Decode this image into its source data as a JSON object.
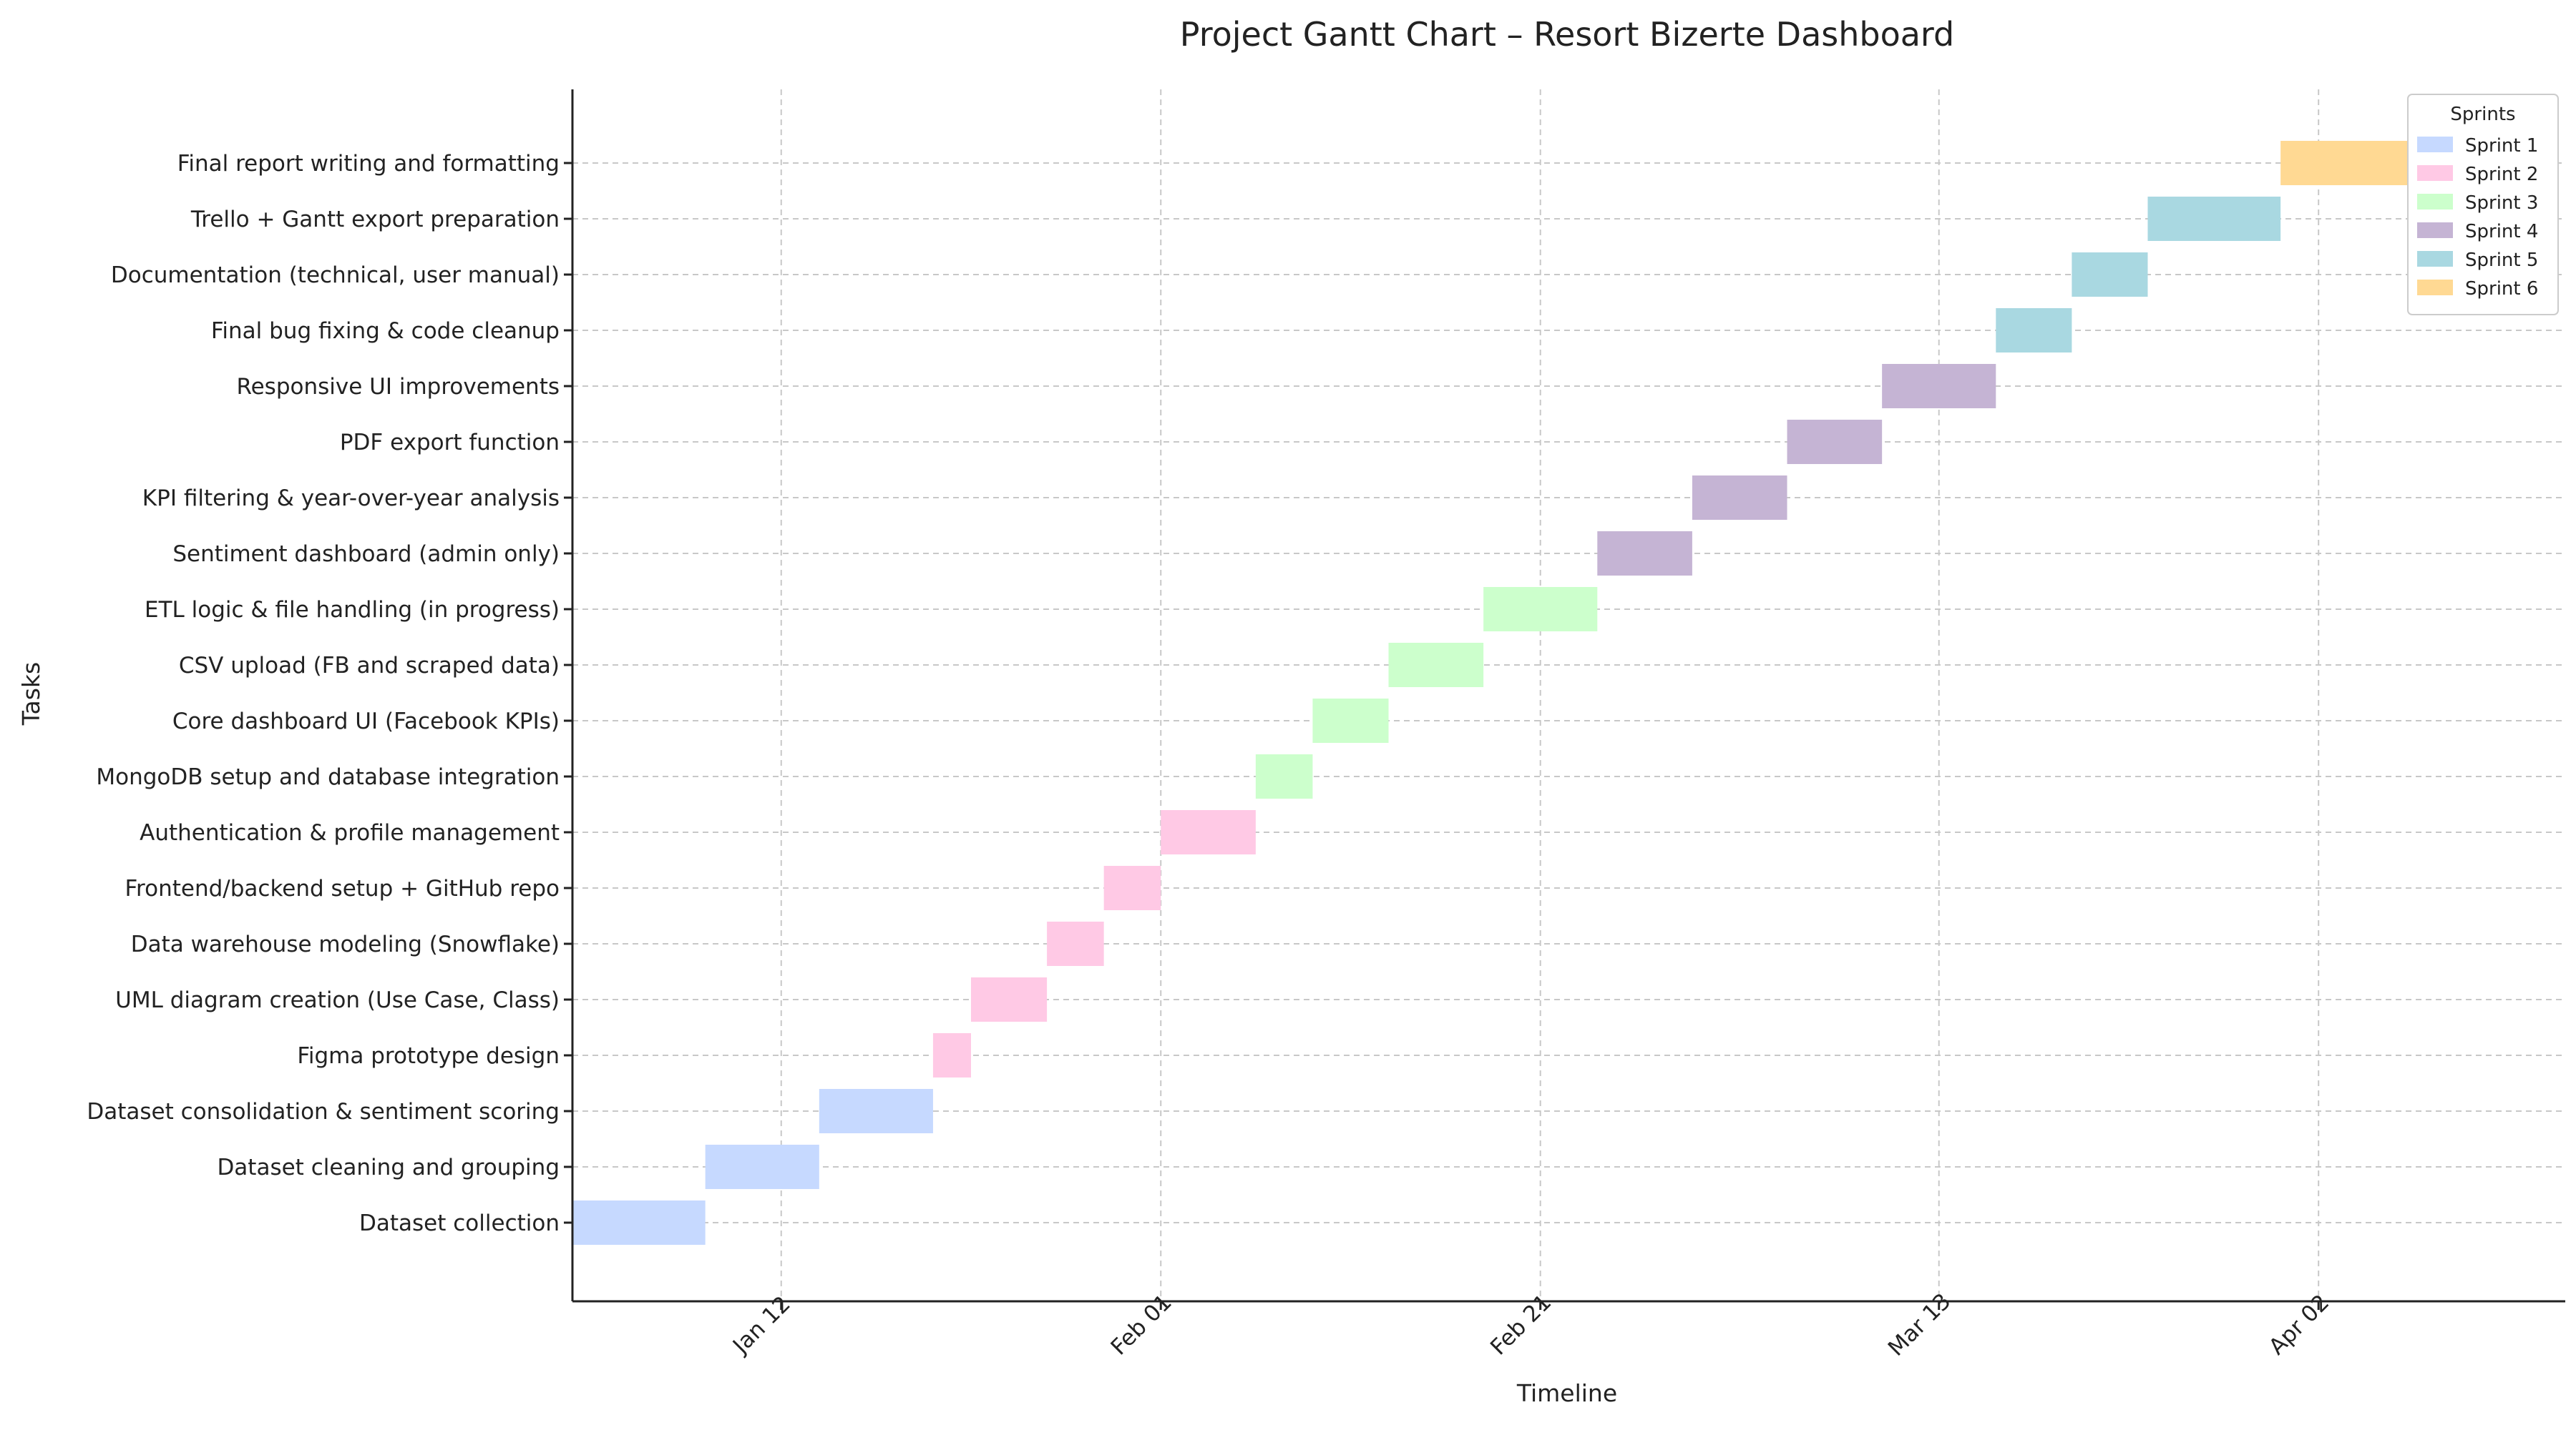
{
  "chart_data": {
    "type": "gantt",
    "title": "Project Gantt Chart – Resort Bizerte Dashboard",
    "xlabel": "Timeline",
    "ylabel": "Tasks",
    "xlim": [
      "2024-01-01",
      "2024-04-15"
    ],
    "x_ticks": [
      {
        "date": "2024-01-12",
        "label": "Jan 12"
      },
      {
        "date": "2024-02-01",
        "label": "Feb 01"
      },
      {
        "date": "2024-02-21",
        "label": "Feb 21"
      },
      {
        "date": "2024-03-13",
        "label": "Mar 13"
      },
      {
        "date": "2024-04-02",
        "label": "Apr 02"
      }
    ],
    "grid": true,
    "legend": {
      "title": "Sprints",
      "position": "top-right"
    },
    "series": [
      {
        "name": "Sprint 1",
        "color": "#c6d9ff"
      },
      {
        "name": "Sprint 2",
        "color": "#ffc9e5"
      },
      {
        "name": "Sprint 3",
        "color": "#ccffcc"
      },
      {
        "name": "Sprint 4",
        "color": "#c5b4d4"
      },
      {
        "name": "Sprint 5",
        "color": "#a9d8e1"
      },
      {
        "name": "Sprint 6",
        "color": "#ffd993"
      }
    ],
    "tasks": [
      {
        "task": "Dataset collection",
        "start": "2024-01-01",
        "end": "2024-01-07",
        "sprint": "Sprint 1"
      },
      {
        "task": "Dataset cleaning and grouping",
        "start": "2024-01-08",
        "end": "2024-01-13",
        "sprint": "Sprint 1"
      },
      {
        "task": "Dataset consolidation & sentiment scoring",
        "start": "2024-01-14",
        "end": "2024-01-19",
        "sprint": "Sprint 1"
      },
      {
        "task": "Figma prototype design",
        "start": "2024-01-20",
        "end": "2024-01-21",
        "sprint": "Sprint 2"
      },
      {
        "task": "UML diagram creation (Use Case, Class)",
        "start": "2024-01-22",
        "end": "2024-01-25",
        "sprint": "Sprint 2"
      },
      {
        "task": "Data warehouse modeling (Snowflake)",
        "start": "2024-01-26",
        "end": "2024-01-28",
        "sprint": "Sprint 2"
      },
      {
        "task": "Frontend/backend setup + GitHub repo",
        "start": "2024-01-29",
        "end": "2024-01-31",
        "sprint": "Sprint 2"
      },
      {
        "task": "Authentication & profile management",
        "start": "2024-02-01",
        "end": "2024-02-05",
        "sprint": "Sprint 2"
      },
      {
        "task": "MongoDB setup and database integration",
        "start": "2024-02-06",
        "end": "2024-02-08",
        "sprint": "Sprint 3"
      },
      {
        "task": "Core dashboard UI (Facebook KPIs)",
        "start": "2024-02-09",
        "end": "2024-02-12",
        "sprint": "Sprint 3"
      },
      {
        "task": "CSV upload (FB and scraped data)",
        "start": "2024-02-13",
        "end": "2024-02-17",
        "sprint": "Sprint 3"
      },
      {
        "task": "ETL logic & file handling (in progress)",
        "start": "2024-02-18",
        "end": "2024-02-23",
        "sprint": "Sprint 3"
      },
      {
        "task": "Sentiment dashboard (admin only)",
        "start": "2024-02-24",
        "end": "2024-02-28",
        "sprint": "Sprint 4"
      },
      {
        "task": "KPI filtering & year-over-year analysis",
        "start": "2024-02-29",
        "end": "2024-03-04",
        "sprint": "Sprint 4"
      },
      {
        "task": "PDF export function",
        "start": "2024-03-05",
        "end": "2024-03-09",
        "sprint": "Sprint 4"
      },
      {
        "task": "Responsive UI improvements",
        "start": "2024-03-10",
        "end": "2024-03-15",
        "sprint": "Sprint 4"
      },
      {
        "task": "Final bug fixing & code cleanup",
        "start": "2024-03-16",
        "end": "2024-03-19",
        "sprint": "Sprint 5"
      },
      {
        "task": "Documentation (technical, user manual)",
        "start": "2024-03-20",
        "end": "2024-03-23",
        "sprint": "Sprint 5"
      },
      {
        "task": "Trello + Gantt export preparation",
        "start": "2024-03-24",
        "end": "2024-03-30",
        "sprint": "Sprint 5"
      },
      {
        "task": "Final report writing and formatting",
        "start": "2024-03-31",
        "end": "2024-04-09",
        "sprint": "Sprint 6"
      }
    ]
  }
}
